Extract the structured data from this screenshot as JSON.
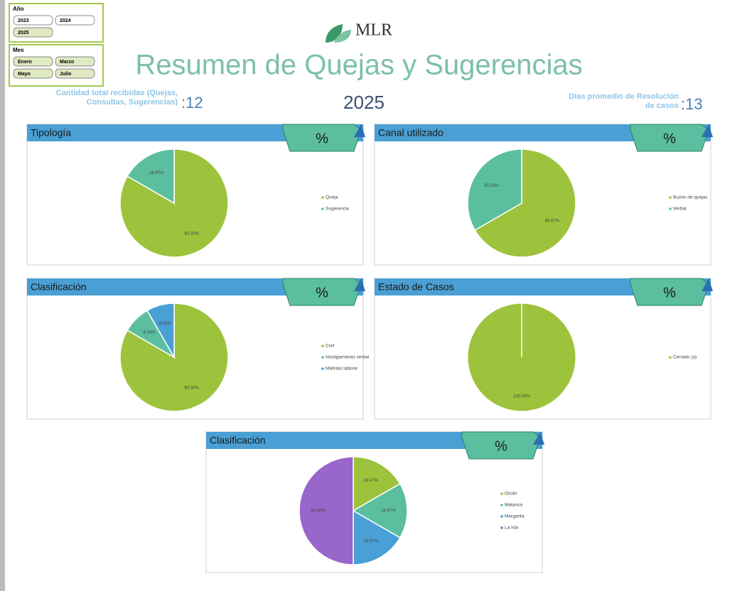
{
  "slicers": [
    {
      "title": "Año",
      "items": [
        "2023",
        "2024",
        "2025"
      ]
    },
    {
      "title": "Mes",
      "items": [
        "Enero",
        "Marzo",
        "Mayo",
        "Julio"
      ]
    }
  ],
  "header": {
    "logo": "MLR",
    "title": "Resumen de Quejas y Sugerencias",
    "year": "2025"
  },
  "kpis": [
    {
      "label": "Cantidad total recibidas (Quejas, Consultas, Sugerencias)",
      "value": ":12"
    },
    {
      "label": "Días promedio de Resolución de casos",
      "value": ":13"
    }
  ],
  "chart_data": [
    {
      "type": "pie",
      "title": "Tipología",
      "badge": "%",
      "categories": [
        "Queja",
        "Sugerencia"
      ],
      "values": [
        83.33,
        16.67
      ],
      "value_labels": [
        "83.33%",
        "16.67%"
      ],
      "colors": [
        "#9dc33c",
        "#5bbf9f"
      ]
    },
    {
      "type": "pie",
      "title": "Canal utilizado",
      "badge": "%",
      "categories": [
        "Buzón de quejas",
        "Verbal"
      ],
      "values": [
        66.67,
        33.33
      ],
      "value_labels": [
        "66.67%",
        "33.33%"
      ],
      "colors": [
        "#9dc33c",
        "#5bbf9f"
      ]
    },
    {
      "type": "pie",
      "title": "Clasificación",
      "badge": "%",
      "categories": [
        "Civil",
        "Hostigamiento verbal",
        "Maltrato laboral"
      ],
      "values": [
        83.33,
        8.33,
        8.33
      ],
      "value_labels": [
        "83.33%",
        "8.33%",
        "8.33%"
      ],
      "colors": [
        "#9dc33c",
        "#5bbf9f",
        "#4a9fd4"
      ]
    },
    {
      "type": "pie",
      "title": "Estado de Casos",
      "badge": "%",
      "categories": [
        "Cerrado (a)"
      ],
      "values": [
        100
      ],
      "value_labels": [
        "100.00%"
      ],
      "colors": [
        "#9dc33c"
      ]
    },
    {
      "type": "pie",
      "title": "Clasificación",
      "badge": "%",
      "categories": [
        "Ocobi",
        "Matanza",
        "Margarita",
        "La Isla"
      ],
      "values": [
        16.67,
        16.67,
        16.67,
        50.0
      ],
      "value_labels": [
        "16.67%",
        "16.67%",
        "16.67%",
        "50.00%"
      ],
      "colors": [
        "#9dc33c",
        "#5bbf9f",
        "#4a9fd4",
        "#9966cc"
      ]
    }
  ]
}
